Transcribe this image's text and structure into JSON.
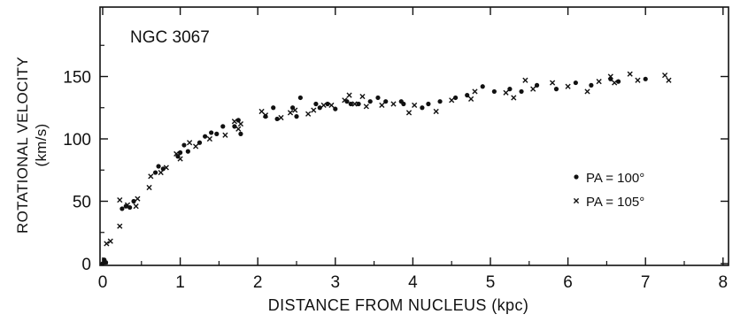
{
  "chart_data": {
    "type": "scatter",
    "title": "NGC 3067",
    "xlabel": "DISTANCE FROM NUCLEUS (kpc)",
    "ylabel_line1": "ROTATIONAL VELOCITY",
    "ylabel_line2": "(km/s)",
    "xlim": [
      0,
      8
    ],
    "ylim": [
      0,
      200
    ],
    "x_ticks": [
      0,
      1,
      2,
      3,
      4,
      5,
      6,
      7,
      8
    ],
    "y_ticks": [
      0,
      50,
      100,
      150
    ],
    "grid": false,
    "legend_position": "right",
    "series": [
      {
        "name": "PA = 100°",
        "marker": "dot",
        "points": [
          [
            0.0,
            0
          ],
          [
            0.02,
            3
          ],
          [
            0.04,
            1
          ],
          [
            0.25,
            44
          ],
          [
            0.3,
            46
          ],
          [
            0.35,
            45
          ],
          [
            0.4,
            50
          ],
          [
            0.68,
            73
          ],
          [
            0.72,
            78
          ],
          [
            0.78,
            76
          ],
          [
            0.97,
            86
          ],
          [
            1.0,
            89
          ],
          [
            1.05,
            95
          ],
          [
            1.1,
            90
          ],
          [
            1.25,
            97
          ],
          [
            1.32,
            102
          ],
          [
            1.4,
            105
          ],
          [
            1.47,
            104
          ],
          [
            1.55,
            110
          ],
          [
            1.7,
            110
          ],
          [
            1.75,
            115
          ],
          [
            1.78,
            104
          ],
          [
            2.1,
            118
          ],
          [
            2.2,
            125
          ],
          [
            2.25,
            116
          ],
          [
            2.45,
            125
          ],
          [
            2.5,
            118
          ],
          [
            2.55,
            133
          ],
          [
            2.75,
            128
          ],
          [
            2.8,
            125
          ],
          [
            2.9,
            128
          ],
          [
            3.0,
            124
          ],
          [
            3.15,
            130
          ],
          [
            3.2,
            128
          ],
          [
            3.3,
            128
          ],
          [
            3.45,
            130
          ],
          [
            3.55,
            133
          ],
          [
            3.65,
            130
          ],
          [
            3.85,
            130
          ],
          [
            3.88,
            128
          ],
          [
            4.12,
            125
          ],
          [
            4.2,
            128
          ],
          [
            4.35,
            130
          ],
          [
            4.55,
            133
          ],
          [
            4.7,
            135
          ],
          [
            4.9,
            142
          ],
          [
            5.05,
            138
          ],
          [
            5.25,
            140
          ],
          [
            5.4,
            138
          ],
          [
            5.6,
            143
          ],
          [
            5.85,
            140
          ],
          [
            6.1,
            145
          ],
          [
            6.3,
            143
          ],
          [
            6.55,
            148
          ],
          [
            6.65,
            146
          ],
          [
            7.0,
            148
          ]
        ]
      },
      {
        "name": "PA = 105°",
        "marker": "x",
        "points": [
          [
            0.05,
            16
          ],
          [
            0.1,
            18
          ],
          [
            0.22,
            30
          ],
          [
            0.22,
            51
          ],
          [
            0.32,
            47
          ],
          [
            0.43,
            46
          ],
          [
            0.45,
            52
          ],
          [
            0.6,
            61
          ],
          [
            0.62,
            70
          ],
          [
            0.75,
            73
          ],
          [
            0.82,
            77
          ],
          [
            0.95,
            88
          ],
          [
            1.0,
            84
          ],
          [
            1.12,
            97
          ],
          [
            1.2,
            94
          ],
          [
            1.38,
            100
          ],
          [
            1.58,
            103
          ],
          [
            1.7,
            114
          ],
          [
            1.75,
            108
          ],
          [
            1.78,
            112
          ],
          [
            2.05,
            122
          ],
          [
            2.1,
            119
          ],
          [
            2.3,
            117
          ],
          [
            2.42,
            121
          ],
          [
            2.48,
            123
          ],
          [
            2.65,
            120
          ],
          [
            2.72,
            123
          ],
          [
            2.85,
            127
          ],
          [
            2.95,
            127
          ],
          [
            3.12,
            131
          ],
          [
            3.18,
            135
          ],
          [
            3.25,
            128
          ],
          [
            3.35,
            134
          ],
          [
            3.4,
            126
          ],
          [
            3.6,
            127
          ],
          [
            3.75,
            128
          ],
          [
            3.95,
            121
          ],
          [
            4.02,
            127
          ],
          [
            4.3,
            122
          ],
          [
            4.5,
            131
          ],
          [
            4.75,
            132
          ],
          [
            4.8,
            138
          ],
          [
            5.2,
            137
          ],
          [
            5.3,
            133
          ],
          [
            5.45,
            147
          ],
          [
            5.55,
            140
          ],
          [
            5.8,
            145
          ],
          [
            6.0,
            142
          ],
          [
            6.25,
            138
          ],
          [
            6.4,
            146
          ],
          [
            6.55,
            150
          ],
          [
            6.6,
            145
          ],
          [
            6.8,
            152
          ],
          [
            6.9,
            147
          ],
          [
            7.25,
            151
          ],
          [
            7.3,
            147
          ]
        ]
      }
    ]
  }
}
